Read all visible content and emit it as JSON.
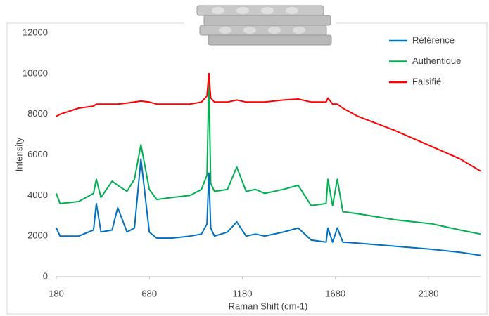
{
  "chart_data": {
    "type": "line",
    "xlabel": "Raman Shift (cm-1)",
    "ylabel": "Intensity",
    "x": [
      180,
      200,
      300,
      380,
      395,
      420,
      480,
      510,
      560,
      600,
      635,
      680,
      720,
      800,
      900,
      960,
      990,
      1000,
      1010,
      1030,
      1100,
      1150,
      1200,
      1250,
      1300,
      1400,
      1480,
      1550,
      1630,
      1640,
      1665,
      1690,
      1720,
      1800,
      2000,
      2200,
      2350,
      2460
    ],
    "series": [
      {
        "name": "Référence",
        "color": "#0070c0",
        "values": [
          2400,
          2000,
          2000,
          2300,
          3600,
          2200,
          2300,
          3400,
          2200,
          2400,
          5800,
          2200,
          1900,
          1900,
          2000,
          2100,
          2600,
          5100,
          2400,
          2000,
          2200,
          2700,
          2000,
          2100,
          2000,
          2200,
          2400,
          1800,
          1700,
          2400,
          1700,
          2400,
          1700,
          1650,
          1500,
          1350,
          1200,
          1050
        ]
      },
      {
        "name": "Authentique",
        "color": "#00b050",
        "values": [
          4100,
          3600,
          3700,
          4100,
          4800,
          3900,
          4700,
          4500,
          4200,
          4800,
          6500,
          4300,
          3800,
          3900,
          4000,
          4300,
          5000,
          9600,
          4600,
          4200,
          4300,
          5400,
          4200,
          4300,
          4100,
          4300,
          4500,
          3500,
          3600,
          4800,
          3500,
          4800,
          3200,
          3100,
          2800,
          2600,
          2300,
          2100
        ]
      },
      {
        "name": "Falsifié",
        "color": "#ff0000",
        "values": [
          7900,
          8000,
          8300,
          8400,
          8500,
          8500,
          8500,
          8500,
          8550,
          8600,
          8650,
          8600,
          8500,
          8500,
          8500,
          8600,
          8900,
          10000,
          8800,
          8600,
          8600,
          8700,
          8600,
          8600,
          8600,
          8700,
          8750,
          8600,
          8600,
          8800,
          8500,
          8500,
          8300,
          7900,
          7200,
          6400,
          5800,
          5200
        ]
      }
    ],
    "xlim": [
      180,
      2460
    ],
    "xticks": [
      180,
      680,
      1180,
      1680,
      2180
    ],
    "ylim": [
      0,
      12000
    ],
    "yticks": [
      0,
      2000,
      4000,
      6000,
      8000,
      10000,
      12000
    ],
    "grid": false,
    "legend": "top-right"
  }
}
